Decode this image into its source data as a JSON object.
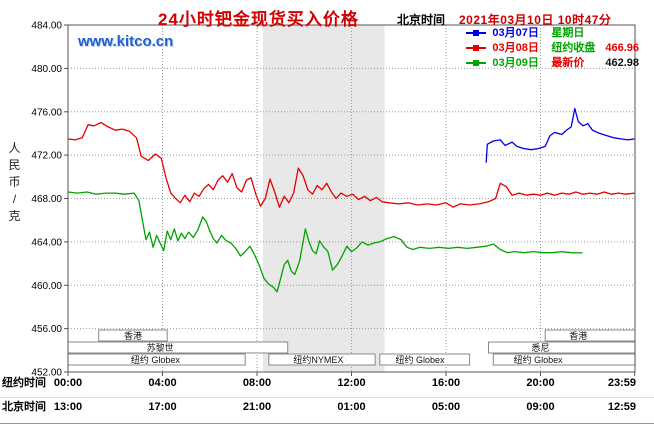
{
  "header": {
    "title": "24小时钯金现货买入价格",
    "clock_label": "北京时间",
    "datetime": "2021年03月10日 10时47分"
  },
  "watermark": "www.kitco.cn",
  "legend": {
    "rows": [
      {
        "color": "#0000e6",
        "parts": [
          {
            "text": "03月07日",
            "color": "#0000e6"
          },
          {
            "text": "星期日",
            "color": "#00a400"
          }
        ]
      },
      {
        "color": "#e60000",
        "parts": [
          {
            "text": "03月08日",
            "color": "#e60000"
          },
          {
            "text": "纽约收盘",
            "color": "#00a400"
          },
          {
            "text": "466.96",
            "color": "#e60000"
          }
        ]
      },
      {
        "color": "#00a400",
        "parts": [
          {
            "text": "03月09日",
            "color": "#00a400"
          },
          {
            "text": "最新价",
            "color": "#e60000"
          },
          {
            "text": "462.98",
            "color": "#111111"
          }
        ]
      }
    ]
  },
  "chart_data": {
    "type": "line",
    "title": "24小时钯金现货买入价格",
    "ylabel": "人民币/克",
    "ylim": [
      452,
      484
    ],
    "ytick_step": 4,
    "xlim_hours": [
      0,
      24
    ],
    "x_unit": "hours, New York time",
    "grid": "dotted",
    "legend_position": "top-right",
    "shaded_band_hours": [
      8.25,
      13.4
    ],
    "xticks_hours": [
      0,
      4,
      8,
      12,
      16,
      20,
      23.983
    ],
    "x_tick_rows": [
      {
        "label": "纽约时间",
        "ticks": [
          "00:00",
          "04:00",
          "08:00",
          "12:00",
          "16:00",
          "20:00",
          "23:59"
        ]
      },
      {
        "label": "北京时间",
        "ticks": [
          "13:00",
          "17:00",
          "21:00",
          "01:00",
          "05:00",
          "09:00",
          "12:59"
        ]
      }
    ],
    "sessions": [
      {
        "row": 0,
        "start": 1.3,
        "end": 4.2,
        "label": "香港",
        "label_h": 2.75
      },
      {
        "row": 0,
        "start": 20.2,
        "end": 24,
        "label": "香港",
        "label_h": 21.6
      },
      {
        "row": 1,
        "start": 0,
        "end": 9.3,
        "label": "苏黎世",
        "label_h": 3.9
      },
      {
        "row": 1,
        "start": 17.8,
        "end": 24,
        "label": "悉尼",
        "label_h": 20.0
      },
      {
        "row": 2,
        "start": 0,
        "end": 7.5,
        "label": "纽约 Globex",
        "label_h": 3.7
      },
      {
        "row": 2,
        "start": 8.5,
        "end": 13.0,
        "label": "纽约NYMEX",
        "label_h": 10.6
      },
      {
        "row": 2,
        "start": 13.2,
        "end": 17.0,
        "label": "纽约 Globex",
        "label_h": 14.9
      },
      {
        "row": 2,
        "start": 18.0,
        "end": 24,
        "label": "纽约 Globex",
        "label_h": 19.9
      }
    ],
    "series": [
      {
        "id": "mar07",
        "name": "03月07日 星期日",
        "color": "#0000e6",
        "points": [
          [
            17.7,
            471.3
          ],
          [
            17.75,
            473.0
          ],
          [
            18.0,
            473.3
          ],
          [
            18.3,
            473.4
          ],
          [
            18.5,
            472.9
          ],
          [
            18.8,
            473.2
          ],
          [
            19.0,
            472.8
          ],
          [
            19.3,
            472.6
          ],
          [
            19.6,
            472.5
          ],
          [
            19.9,
            472.6
          ],
          [
            20.2,
            472.8
          ],
          [
            20.4,
            473.8
          ],
          [
            20.6,
            474.1
          ],
          [
            20.9,
            473.9
          ],
          [
            21.1,
            474.3
          ],
          [
            21.3,
            474.6
          ],
          [
            21.45,
            476.3
          ],
          [
            21.6,
            475.1
          ],
          [
            21.8,
            474.7
          ],
          [
            22.0,
            474.9
          ],
          [
            22.2,
            474.3
          ],
          [
            22.5,
            474.0
          ],
          [
            22.8,
            473.8
          ],
          [
            23.1,
            473.6
          ],
          [
            23.4,
            473.5
          ],
          [
            23.7,
            473.4
          ],
          [
            23.98,
            473.5
          ]
        ]
      },
      {
        "id": "mar08",
        "name": "03月08日 纽约收盘 466.96",
        "color": "#e60000",
        "points": [
          [
            0,
            473.5
          ],
          [
            0.3,
            473.4
          ],
          [
            0.6,
            473.6
          ],
          [
            0.85,
            474.8
          ],
          [
            1.1,
            474.7
          ],
          [
            1.4,
            475.0
          ],
          [
            1.7,
            474.6
          ],
          [
            2.0,
            474.3
          ],
          [
            2.3,
            474.4
          ],
          [
            2.6,
            474.2
          ],
          [
            2.9,
            473.6
          ],
          [
            3.1,
            471.9
          ],
          [
            3.4,
            471.5
          ],
          [
            3.7,
            472.1
          ],
          [
            3.95,
            471.7
          ],
          [
            4.15,
            469.9
          ],
          [
            4.35,
            468.5
          ],
          [
            4.55,
            468.0
          ],
          [
            4.75,
            467.6
          ],
          [
            4.95,
            468.3
          ],
          [
            5.15,
            467.7
          ],
          [
            5.35,
            468.5
          ],
          [
            5.55,
            468.2
          ],
          [
            5.75,
            468.9
          ],
          [
            5.95,
            469.3
          ],
          [
            6.15,
            468.8
          ],
          [
            6.35,
            469.7
          ],
          [
            6.55,
            470.1
          ],
          [
            6.75,
            469.5
          ],
          [
            6.95,
            470.3
          ],
          [
            7.15,
            469.0
          ],
          [
            7.35,
            468.6
          ],
          [
            7.55,
            469.7
          ],
          [
            7.75,
            469.9
          ],
          [
            7.95,
            468.4
          ],
          [
            8.15,
            467.3
          ],
          [
            8.35,
            468.0
          ],
          [
            8.55,
            469.8
          ],
          [
            8.75,
            468.6
          ],
          [
            8.95,
            467.2
          ],
          [
            9.15,
            468.2
          ],
          [
            9.35,
            467.6
          ],
          [
            9.55,
            468.5
          ],
          [
            9.75,
            470.8
          ],
          [
            9.95,
            470.1
          ],
          [
            10.15,
            468.8
          ],
          [
            10.35,
            468.4
          ],
          [
            10.55,
            469.2
          ],
          [
            10.75,
            468.8
          ],
          [
            10.95,
            469.4
          ],
          [
            11.15,
            468.6
          ],
          [
            11.35,
            468.0
          ],
          [
            11.55,
            468.5
          ],
          [
            11.8,
            468.2
          ],
          [
            12.05,
            468.4
          ],
          [
            12.3,
            467.9
          ],
          [
            12.55,
            468.2
          ],
          [
            12.8,
            467.8
          ],
          [
            13.05,
            468.1
          ],
          [
            13.3,
            467.7
          ],
          [
            13.6,
            467.6
          ],
          [
            14.0,
            467.5
          ],
          [
            14.4,
            467.6
          ],
          [
            14.8,
            467.4
          ],
          [
            15.2,
            467.5
          ],
          [
            15.6,
            467.4
          ],
          [
            16.0,
            467.6
          ],
          [
            16.3,
            467.2
          ],
          [
            16.6,
            467.5
          ],
          [
            17.0,
            467.4
          ],
          [
            17.4,
            467.5
          ],
          [
            17.8,
            467.7
          ],
          [
            18.1,
            468.0
          ],
          [
            18.3,
            469.4
          ],
          [
            18.55,
            469.1
          ],
          [
            18.8,
            468.3
          ],
          [
            19.1,
            468.5
          ],
          [
            19.4,
            468.3
          ],
          [
            19.7,
            468.4
          ],
          [
            20.0,
            468.3
          ],
          [
            20.3,
            468.5
          ],
          [
            20.6,
            468.3
          ],
          [
            20.9,
            468.5
          ],
          [
            21.2,
            468.4
          ],
          [
            21.5,
            468.6
          ],
          [
            21.8,
            468.4
          ],
          [
            22.1,
            468.5
          ],
          [
            22.4,
            468.4
          ],
          [
            22.7,
            468.6
          ],
          [
            23.0,
            468.4
          ],
          [
            23.3,
            468.5
          ],
          [
            23.6,
            468.4
          ],
          [
            23.98,
            468.5
          ]
        ]
      },
      {
        "id": "mar09",
        "name": "03月09日 最新价 462.98",
        "color": "#00a400",
        "points": [
          [
            0,
            468.6
          ],
          [
            0.4,
            468.5
          ],
          [
            0.8,
            468.6
          ],
          [
            1.2,
            468.4
          ],
          [
            1.6,
            468.5
          ],
          [
            2.0,
            468.5
          ],
          [
            2.4,
            468.4
          ],
          [
            2.8,
            468.5
          ],
          [
            3.0,
            467.8
          ],
          [
            3.15,
            466.0
          ],
          [
            3.3,
            464.2
          ],
          [
            3.45,
            464.9
          ],
          [
            3.6,
            463.5
          ],
          [
            3.75,
            464.6
          ],
          [
            3.9,
            463.9
          ],
          [
            4.05,
            463.2
          ],
          [
            4.2,
            465.0
          ],
          [
            4.35,
            464.2
          ],
          [
            4.5,
            465.2
          ],
          [
            4.65,
            464.1
          ],
          [
            4.8,
            464.8
          ],
          [
            4.95,
            464.3
          ],
          [
            5.1,
            464.9
          ],
          [
            5.3,
            464.4
          ],
          [
            5.5,
            465.1
          ],
          [
            5.7,
            466.3
          ],
          [
            5.85,
            465.9
          ],
          [
            6.0,
            465.0
          ],
          [
            6.15,
            464.3
          ],
          [
            6.3,
            463.9
          ],
          [
            6.5,
            464.6
          ],
          [
            6.7,
            464.1
          ],
          [
            6.9,
            463.9
          ],
          [
            7.1,
            463.4
          ],
          [
            7.3,
            462.7
          ],
          [
            7.5,
            463.1
          ],
          [
            7.7,
            463.6
          ],
          [
            7.9,
            462.8
          ],
          [
            8.1,
            461.8
          ],
          [
            8.3,
            460.6
          ],
          [
            8.5,
            460.1
          ],
          [
            8.7,
            459.8
          ],
          [
            8.85,
            459.4
          ],
          [
            9.0,
            460.6
          ],
          [
            9.15,
            461.9
          ],
          [
            9.3,
            462.3
          ],
          [
            9.45,
            461.3
          ],
          [
            9.6,
            461.0
          ],
          [
            9.8,
            462.2
          ],
          [
            9.95,
            464.0
          ],
          [
            10.05,
            465.2
          ],
          [
            10.2,
            464.0
          ],
          [
            10.35,
            463.2
          ],
          [
            10.5,
            462.9
          ],
          [
            10.65,
            464.1
          ],
          [
            10.8,
            463.6
          ],
          [
            11.0,
            463.1
          ],
          [
            11.2,
            461.4
          ],
          [
            11.4,
            461.9
          ],
          [
            11.6,
            462.7
          ],
          [
            11.8,
            463.6
          ],
          [
            12.0,
            463.1
          ],
          [
            12.2,
            463.4
          ],
          [
            12.45,
            464.0
          ],
          [
            12.7,
            463.7
          ],
          [
            12.95,
            463.9
          ],
          [
            13.2,
            464.0
          ],
          [
            13.5,
            464.3
          ],
          [
            13.8,
            464.5
          ],
          [
            14.1,
            464.2
          ],
          [
            14.35,
            463.5
          ],
          [
            14.6,
            463.3
          ],
          [
            14.9,
            463.5
          ],
          [
            15.3,
            463.4
          ],
          [
            15.7,
            463.5
          ],
          [
            16.1,
            463.4
          ],
          [
            16.5,
            463.5
          ],
          [
            16.9,
            463.4
          ],
          [
            17.3,
            463.5
          ],
          [
            17.7,
            463.6
          ],
          [
            18.0,
            463.8
          ],
          [
            18.3,
            463.3
          ],
          [
            18.6,
            463.0
          ],
          [
            18.9,
            463.1
          ],
          [
            19.3,
            463.0
          ],
          [
            19.7,
            463.1
          ],
          [
            20.1,
            463.0
          ],
          [
            20.5,
            463.0
          ],
          [
            20.9,
            463.1
          ],
          [
            21.3,
            463.0
          ],
          [
            21.78,
            462.98
          ]
        ]
      }
    ]
  }
}
